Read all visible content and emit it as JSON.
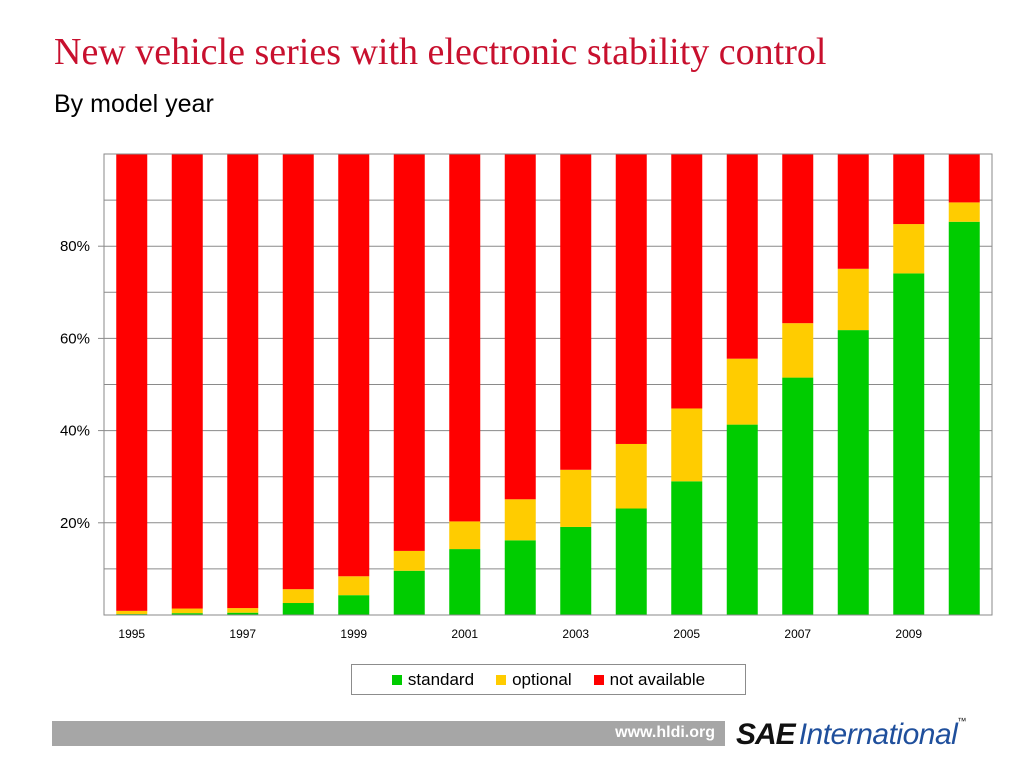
{
  "title": "New vehicle series with electronic stability control",
  "subtitle": "By model year",
  "footer": {
    "url": "www.hldi.org"
  },
  "logo": {
    "sae": "SAE",
    "international": "International",
    "tm": "™"
  },
  "colors": {
    "standard": "#00cc00",
    "optional": "#ffcc00",
    "not_available": "#ff0000",
    "title": "#c8102e"
  },
  "chart_data": {
    "type": "bar",
    "stacked": true,
    "title": "New vehicle series with electronic stability control",
    "subtitle": "By model year",
    "xlabel": "",
    "ylabel": "",
    "ylim": [
      0,
      100
    ],
    "yticks": [
      20,
      40,
      60,
      80
    ],
    "ytick_labels": [
      "20%",
      "40%",
      "60%",
      "80%"
    ],
    "grid": true,
    "legend_position": "bottom",
    "categories": [
      "1995",
      "1996",
      "1997",
      "1998",
      "1999",
      "2000",
      "2001",
      "2002",
      "2003",
      "2004",
      "2005",
      "2006",
      "2007",
      "2008",
      "2009",
      "2010"
    ],
    "x_tick_labels": [
      "1995",
      "",
      "1997",
      "",
      "1999",
      "",
      "2001",
      "",
      "2003",
      "",
      "2005",
      "",
      "2007",
      "",
      "2009",
      ""
    ],
    "series": [
      {
        "name": "standard",
        "color": "#00cc00",
        "values": [
          0.2,
          0.4,
          0.5,
          2.6,
          4.3,
          9.6,
          14.3,
          16.2,
          19.1,
          23.1,
          29.0,
          41.3,
          51.5,
          61.8,
          74.1,
          85.3
        ]
      },
      {
        "name": "optional",
        "color": "#ffcc00",
        "values": [
          0.7,
          1.0,
          1.0,
          3.0,
          4.1,
          4.3,
          6.0,
          8.9,
          12.4,
          14.0,
          15.8,
          14.3,
          11.8,
          13.3,
          10.7,
          4.2
        ]
      },
      {
        "name": "not available",
        "color": "#ff0000",
        "values": [
          99.1,
          98.6,
          98.5,
          94.4,
          91.6,
          86.1,
          79.7,
          74.9,
          68.5,
          62.9,
          55.2,
          44.4,
          36.7,
          24.9,
          15.2,
          10.5
        ]
      }
    ]
  }
}
